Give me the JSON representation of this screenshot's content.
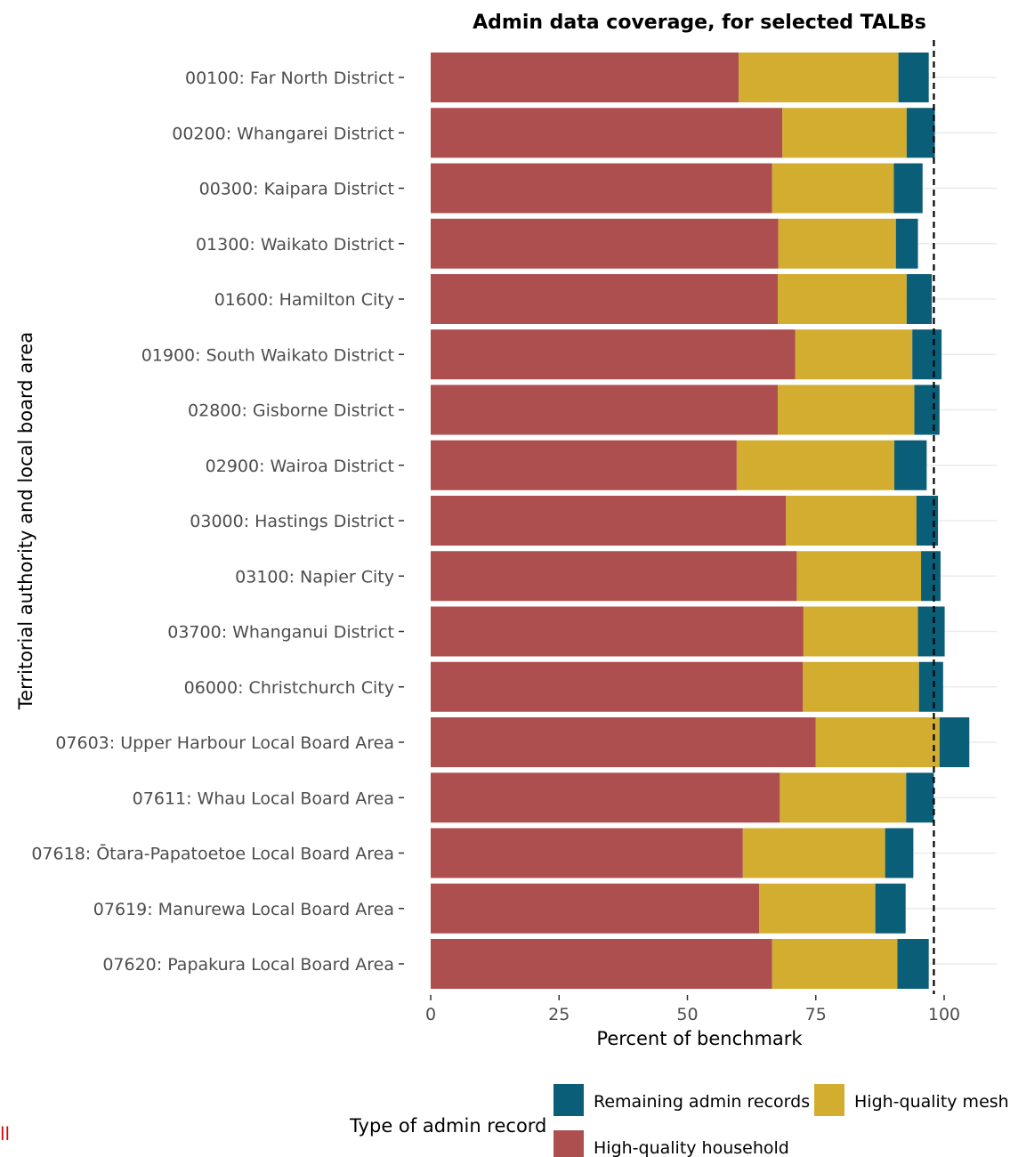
{
  "chart_data": {
    "type": "bar",
    "orientation": "horizontal",
    "stacked": true,
    "title": "Admin data coverage, for selected TALBs",
    "xlabel": "Percent of benchmark",
    "ylabel": "Territorial authority and local board area",
    "xlim": [
      0,
      110
    ],
    "xticks": [
      0,
      25,
      50,
      75,
      100
    ],
    "reference_line": {
      "x": 98,
      "style": "dashed"
    },
    "grid": true,
    "categories": [
      "00100: Far North District",
      "00200: Whangarei District",
      "00300: Kaipara District",
      "01300: Waikato District",
      "01600: Hamilton City",
      "01900: South Waikato District",
      "02800: Gisborne District",
      "02900: Wairoa District",
      "03000: Hastings District",
      "03100: Napier City",
      "03700: Whanganui District",
      "06000: Christchurch City",
      "07603: Upper Harbour Local Board Area",
      "07611: Whau Local Board Area",
      "07618: Ōtara-Papatoetoe Local Board Area",
      "07619: Manurewa Local Board Area",
      "07620: Papakura Local Board Area"
    ],
    "series": [
      {
        "name": "High-quality household",
        "color": "#ad4e4f",
        "values": [
          60,
          68.5,
          66.5,
          67.7,
          67.6,
          71,
          67.6,
          59.6,
          69.2,
          71.3,
          72.6,
          72.5,
          75,
          68,
          60.8,
          64,
          66.5
        ]
      },
      {
        "name": "High-quality mesh",
        "color": "#d2ad2f",
        "values": [
          31.1,
          24.2,
          23.7,
          22.9,
          25.1,
          22.8,
          26.6,
          30.7,
          25.4,
          24.2,
          22.3,
          22.6,
          24.1,
          24.6,
          27.7,
          22.6,
          24.4
        ]
      },
      {
        "name": "Remaining admin records",
        "color": "#0b5e78",
        "values": [
          5.9,
          5.5,
          5.6,
          4.3,
          4.9,
          5.7,
          4.9,
          6.3,
          4.2,
          3.8,
          5.2,
          4.7,
          5.8,
          5.4,
          5.5,
          5.9,
          6.1
        ]
      }
    ],
    "legend": {
      "title": "Type of admin record",
      "placement": "bottom",
      "items": [
        "Remaining admin records",
        "High-quality mesh",
        "High-quality household"
      ]
    }
  },
  "corner_mark": "ll"
}
